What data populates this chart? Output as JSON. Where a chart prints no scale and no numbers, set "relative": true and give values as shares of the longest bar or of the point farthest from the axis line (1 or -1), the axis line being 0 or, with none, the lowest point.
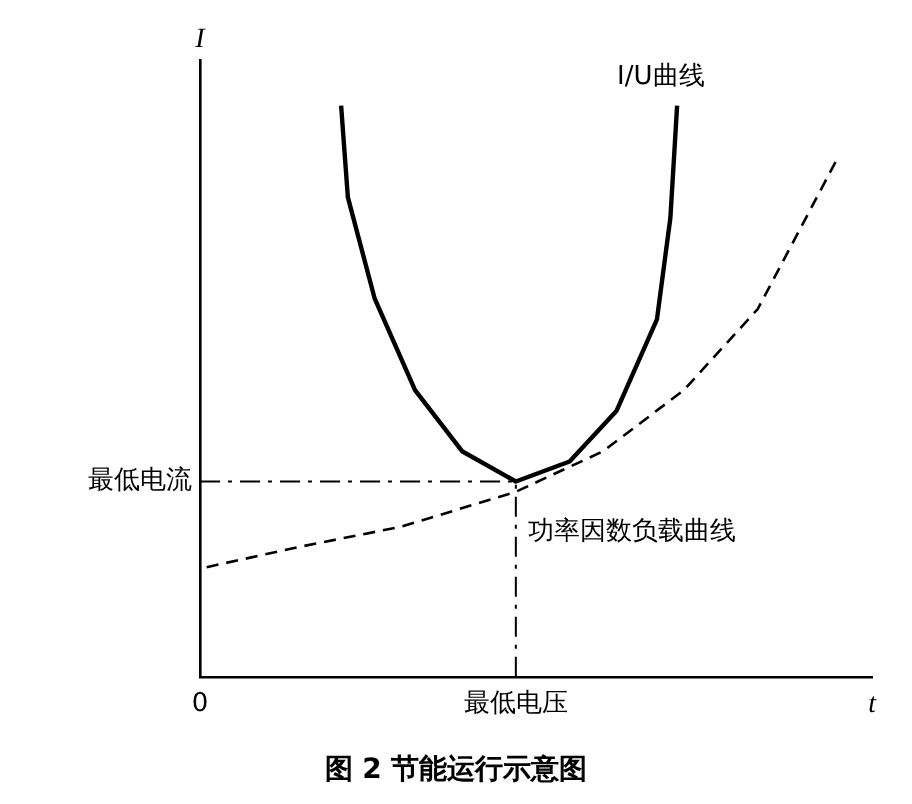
{
  "chart_data": {
    "type": "line",
    "title": "图 2  节能运行示意图",
    "xlabel": "t",
    "ylabel": "I",
    "relative": true,
    "marker": "none",
    "legend": false,
    "categories": [
      "0",
      null,
      null,
      null,
      null,
      null,
      null,
      null,
      null,
      null,
      null,
      null,
      null,
      null,
      null,
      null,
      null,
      null,
      null,
      null,
      null,
      null,
      null,
      null,
      null,
      null,
      null,
      null,
      null,
      null,
      null,
      null,
      null,
      null,
      null,
      null,
      null,
      null,
      null,
      null,
      null,
      null,
      null,
      null,
      null,
      null,
      null,
      "最低电压",
      null,
      null,
      null,
      null,
      null,
      null,
      null,
      null,
      null,
      null,
      null,
      null,
      null,
      null,
      null,
      null,
      null,
      null,
      null,
      null,
      null,
      null,
      null,
      null,
      null,
      null,
      null,
      null,
      null,
      null,
      null,
      null,
      null,
      null,
      null,
      null,
      null,
      null,
      null,
      null,
      null,
      null,
      null,
      null,
      null,
      null,
      null,
      null,
      null,
      null,
      null,
      null,
      null
    ],
    "ref_lines": [
      {
        "axis": "y",
        "value": 0.342,
        "label": "最低电流",
        "line_style": "dashdot",
        "color": "#000000"
      },
      {
        "axis": "x",
        "value": "最低电压",
        "label": null,
        "line_style": "dashdot",
        "color": "#000000"
      }
    ],
    "series": [
      {
        "name": "I/U曲线",
        "color": "#000000",
        "line_style": "solid",
        "values": [
          null,
          null,
          null,
          null,
          null,
          null,
          null,
          null,
          null,
          null,
          null,
          null,
          null,
          null,
          null,
          null,
          null,
          null,
          null,
          null,
          null,
          1.0,
          0.84,
          null,
          null,
          null,
          0.662,
          null,
          null,
          null,
          null,
          null,
          0.502,
          null,
          null,
          null,
          null,
          null,
          null,
          0.395,
          null,
          null,
          null,
          null,
          null,
          null,
          null,
          0.342,
          null,
          null,
          null,
          null,
          null,
          null,
          null,
          0.377,
          null,
          null,
          null,
          null,
          null,
          null,
          0.466,
          null,
          null,
          null,
          null,
          null,
          0.626,
          null,
          0.804,
          1.0,
          null,
          null,
          null,
          null,
          null,
          null,
          null,
          null,
          null,
          null,
          null,
          null,
          null,
          null,
          null,
          null,
          null,
          null,
          null,
          null,
          null,
          null,
          null,
          null,
          null,
          null,
          null,
          null,
          null
        ]
      },
      {
        "name": "功率因数负载曲线",
        "color": "#000000",
        "line_style": "dashed",
        "values": [
          null,
          0.192,
          null,
          null,
          null,
          null,
          null,
          null,
          null,
          null,
          null,
          null,
          null,
          null,
          null,
          0.228,
          null,
          null,
          null,
          null,
          null,
          null,
          null,
          null,
          null,
          null,
          null,
          null,
          null,
          null,
          0.263,
          null,
          null,
          null,
          null,
          null,
          null,
          null,
          null,
          null,
          null,
          null,
          null,
          null,
          null,
          null,
          null,
          0.324,
          null,
          null,
          null,
          null,
          null,
          null,
          null,
          null,
          null,
          null,
          null,
          null,
          0.395,
          null,
          null,
          null,
          null,
          null,
          null,
          null,
          null,
          null,
          null,
          null,
          0.502,
          null,
          null,
          null,
          null,
          null,
          null,
          null,
          null,
          null,
          null,
          0.644,
          null,
          null,
          null,
          null,
          null,
          null,
          null,
          null,
          null,
          null,
          null,
          0.911,
          null,
          null,
          null,
          null,
          null
        ]
      }
    ]
  }
}
